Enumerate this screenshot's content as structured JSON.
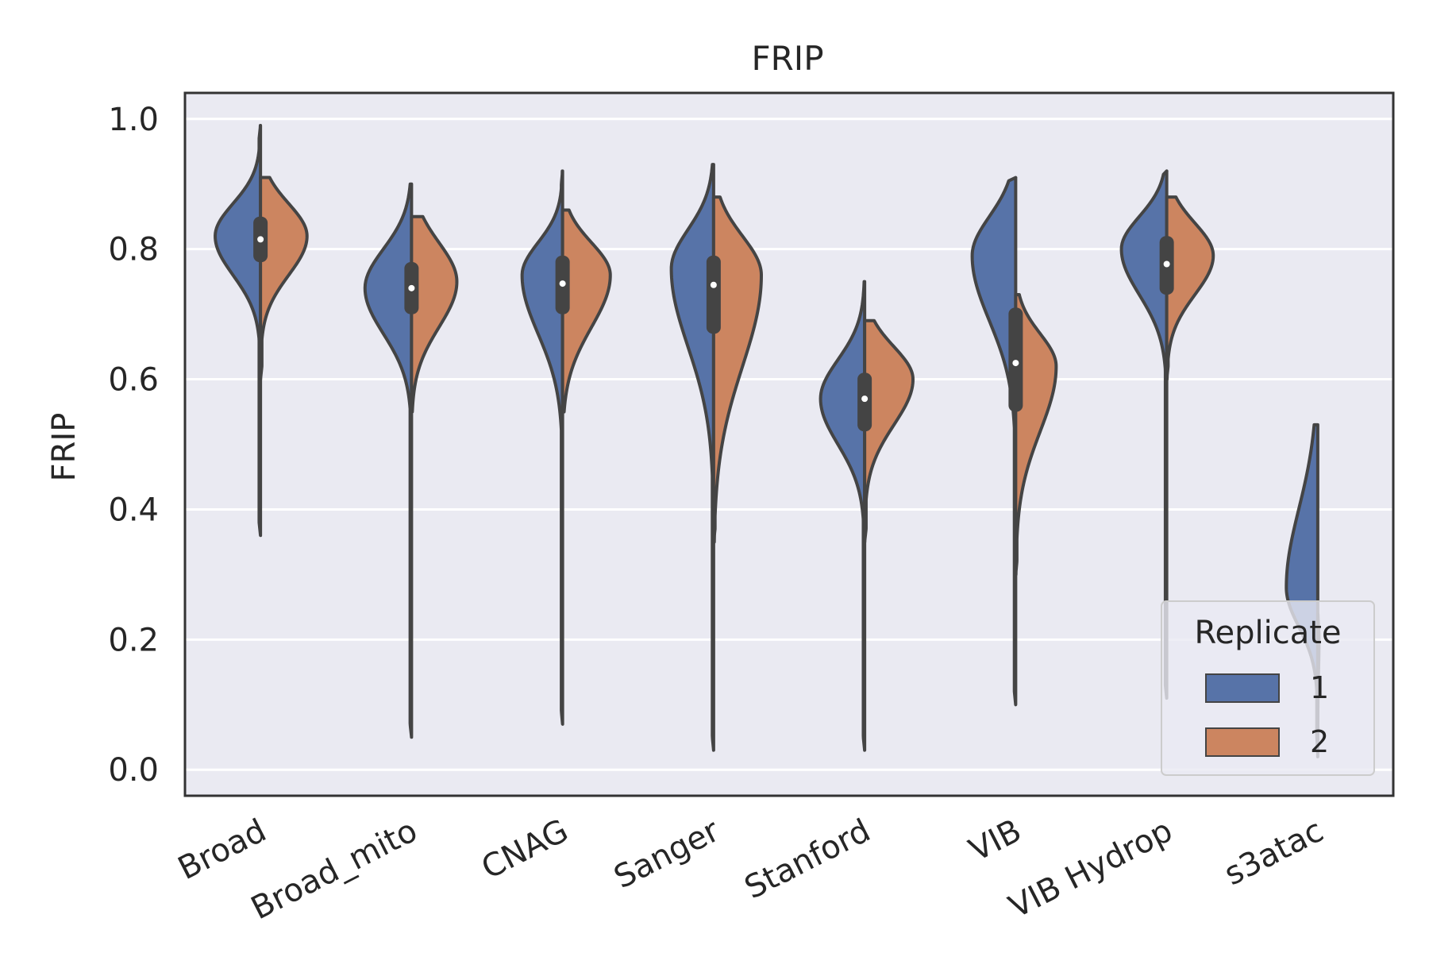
{
  "chart_data": {
    "type": "violin",
    "title": "FRIP",
    "xlabel": "",
    "ylabel": "FRIP",
    "ylim": [
      -0.04,
      1.04
    ],
    "yticks": [
      "0.0",
      "0.2",
      "0.4",
      "0.6",
      "0.8",
      "1.0"
    ],
    "grid": true,
    "categories": [
      "Broad",
      "Broad_mito",
      "CNAG",
      "Sanger",
      "Stanford",
      "VIB",
      "VIB Hydrop",
      "s3atac"
    ],
    "legend": {
      "title": "Replicate",
      "position": "lower-right"
    },
    "series": [
      {
        "name": "1",
        "color": "#5773a8",
        "distributions": [
          {
            "ymin": 0.36,
            "ymax": 0.99,
            "mode": 0.82,
            "width": 0.75,
            "spread_low": 0.06,
            "spread_high": 0.05
          },
          {
            "ymin": 0.05,
            "ymax": 0.9,
            "mode": 0.74,
            "width": 0.77,
            "spread_low": 0.07,
            "spread_high": 0.06
          },
          {
            "ymin": 0.07,
            "ymax": 0.92,
            "mode": 0.76,
            "width": 0.67,
            "spread_low": 0.09,
            "spread_high": 0.05
          },
          {
            "ymin": 0.03,
            "ymax": 0.93,
            "mode": 0.77,
            "width": 0.7,
            "spread_low": 0.12,
            "spread_high": 0.06
          },
          {
            "ymin": 0.03,
            "ymax": 0.75,
            "mode": 0.57,
            "width": 0.73,
            "spread_low": 0.07,
            "spread_high": 0.06
          },
          {
            "ymin": 0.1,
            "ymax": 0.91,
            "mode": 0.79,
            "width": 0.72,
            "spread_low": 0.1,
            "spread_high": 0.06
          },
          {
            "ymin": 0.11,
            "ymax": 0.92,
            "mode": 0.8,
            "width": 0.75,
            "spread_low": 0.07,
            "spread_high": 0.05
          },
          {
            "ymin": 0.03,
            "ymax": 0.53,
            "mode": 0.28,
            "width": 0.52,
            "spread_low": 0.06,
            "spread_high": 0.12
          }
        ]
      },
      {
        "name": "2",
        "color": "#cc8560",
        "distributions": [
          {
            "ymin": 0.6,
            "ymax": 0.91,
            "mode": 0.82,
            "width": 0.77,
            "spread_low": 0.06,
            "spread_high": 0.05
          },
          {
            "ymin": 0.55,
            "ymax": 0.85,
            "mode": 0.75,
            "width": 0.75,
            "spread_low": 0.07,
            "spread_high": 0.06
          },
          {
            "ymin": 0.55,
            "ymax": 0.86,
            "mode": 0.76,
            "width": 0.79,
            "spread_low": 0.08,
            "spread_high": 0.05
          },
          {
            "ymin": 0.35,
            "ymax": 0.88,
            "mode": 0.76,
            "width": 0.79,
            "spread_low": 0.14,
            "spread_high": 0.06
          },
          {
            "ymin": 0.35,
            "ymax": 0.69,
            "mode": 0.6,
            "width": 0.8,
            "spread_low": 0.07,
            "spread_high": 0.05
          },
          {
            "ymin": 0.3,
            "ymax": 0.73,
            "mode": 0.62,
            "width": 0.67,
            "spread_low": 0.1,
            "spread_high": 0.05
          },
          {
            "ymin": 0.6,
            "ymax": 0.88,
            "mode": 0.79,
            "width": 0.77,
            "spread_low": 0.06,
            "spread_high": 0.05
          },
          {
            "ymin": 0.02,
            "ymax": 0.24,
            "mode": 0.2,
            "width": 0.02,
            "spread_low": 0.05,
            "spread_high": 0.02
          }
        ]
      }
    ],
    "boxes": [
      {
        "q1": 0.78,
        "median": 0.815,
        "q3": 0.85
      },
      {
        "q1": 0.7,
        "median": 0.74,
        "q3": 0.78
      },
      {
        "q1": 0.7,
        "median": 0.747,
        "q3": 0.79
      },
      {
        "q1": 0.67,
        "median": 0.745,
        "q3": 0.79
      },
      {
        "q1": 0.52,
        "median": 0.57,
        "q3": 0.61
      },
      {
        "q1": 0.55,
        "median": 0.625,
        "q3": 0.71
      },
      {
        "q1": 0.73,
        "median": 0.777,
        "q3": 0.82
      },
      {
        "q1": 0.0,
        "median": 0.0,
        "q3": 0.0
      }
    ]
  }
}
